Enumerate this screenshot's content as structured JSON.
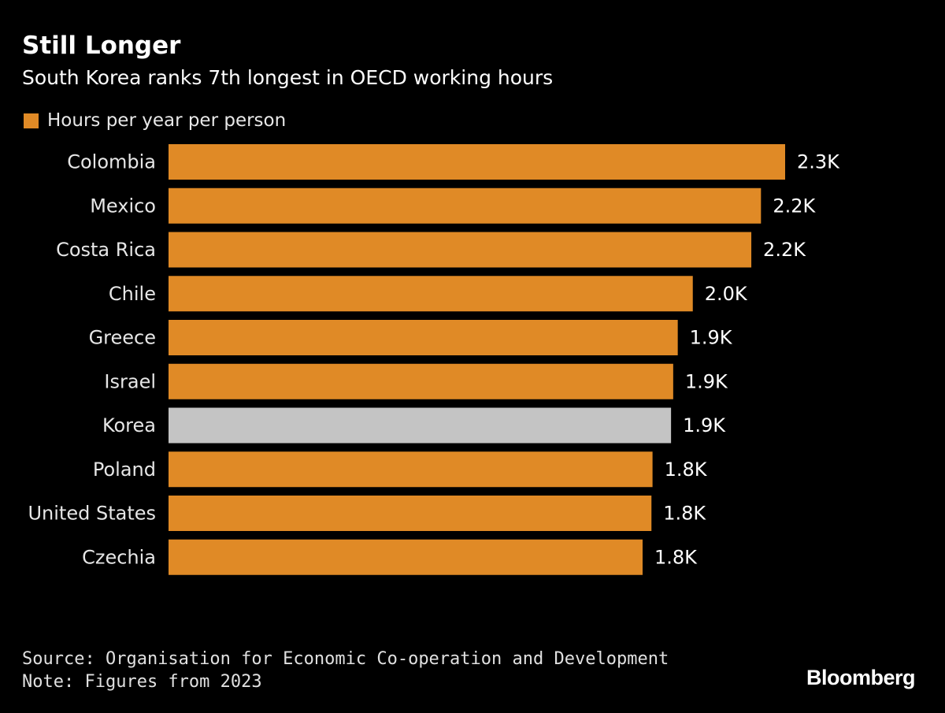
{
  "header": {
    "title": "Still Longer",
    "subtitle": "South Korea ranks 7th longest in OECD working hours"
  },
  "legend": {
    "label": "Hours per year per person",
    "color": "#e08a26"
  },
  "colors": {
    "bar": "#e08a26",
    "highlight": "#c4c4c4",
    "background": "#000000"
  },
  "chart_data": {
    "type": "bar",
    "orientation": "horizontal",
    "title": "Still Longer",
    "subtitle": "South Korea ranks 7th longest in OECD working hours",
    "categories": [
      "Colombia",
      "Mexico",
      "Costa Rica",
      "Chile",
      "Greece",
      "Israel",
      "Korea",
      "Poland",
      "United States",
      "Czechia"
    ],
    "series": [
      {
        "name": "Hours per year per person",
        "values": [
          2297,
          2207,
          2171,
          1953,
          1897,
          1880,
          1872,
          1803,
          1799,
          1766
        ],
        "labels": [
          "2.3K",
          "2.2K",
          "2.2K",
          "2.0K",
          "1.9K",
          "1.9K",
          "1.9K",
          "1.8K",
          "1.8K",
          "1.8K"
        ]
      }
    ],
    "highlight": "Korea",
    "xlim": [
      0,
      2297
    ],
    "grid": false,
    "legend_position": "top-left",
    "xlabel": "",
    "ylabel": ""
  },
  "footer": {
    "source": "Source: Organisation for Economic Co-operation and Development",
    "note": "Note: Figures from 2023",
    "brand": "Bloomberg"
  }
}
